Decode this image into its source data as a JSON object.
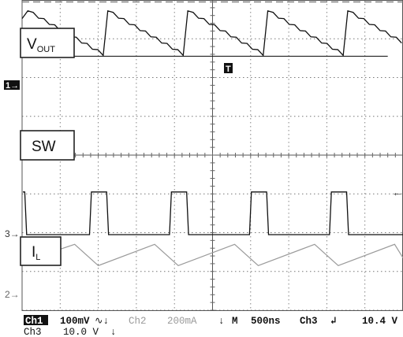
{
  "chart_data": {
    "type": "line",
    "grid": true,
    "divisions": {
      "x": 10,
      "y": 8
    },
    "timebase": "500ns",
    "channels": [
      {
        "name": "Ch1",
        "label": {
          "main": "V",
          "sub": "OUT"
        },
        "marker": "1",
        "scale": "100mV",
        "color": "#111111",
        "kind": "sawtooth",
        "period_div": 2.1,
        "phase_div": 0.15,
        "rise_div": 0.12,
        "ref_level_div": 3.95,
        "high_div": 3.72,
        "low_div": 2.6
      },
      {
        "name": "Ch3",
        "label": {
          "main": "SW",
          "sub": ""
        },
        "marker": "3",
        "scale": "10.0 V",
        "color": "#111111",
        "kind": "pulse",
        "period_div": 2.1,
        "first_rise_div": 0.05,
        "pulse_width_div": 0.45,
        "high_div": -0.95,
        "low_div": -2.05
      },
      {
        "name": "Ch2",
        "label": {
          "main": "I",
          "sub": "L"
        },
        "marker": "2",
        "scale": "200mA",
        "color": "#9a9a9a",
        "kind": "triangle",
        "period_div": 2.1,
        "phase_div": 0.1,
        "rise_div": 0.62,
        "high_div": -2.3,
        "low_div": -2.85
      }
    ],
    "trigger": {
      "source": "Ch3",
      "slope": "falling",
      "level": "10.4 V",
      "position_div": 5.0
    }
  },
  "status_bar": {
    "line1": {
      "ch1": "Ch1",
      "ch1_scale": "100mV",
      "ch1_bw": "∿↓",
      "ch2": "Ch2",
      "ch2_scale": "200mA",
      "mode": "M",
      "timebase": "500ns",
      "trig_src": "Ch3",
      "trig_slope": "↲",
      "trig_level": "10.4 V"
    },
    "line2": {
      "ch3": "Ch3",
      "ch3_scale": "10.0 V",
      "ch3_bw": "↓"
    }
  },
  "markers": {
    "ch1": "1→",
    "ch3": "3→",
    "ch2": "2→",
    "trigger": "T",
    "right_arrow": "←"
  }
}
